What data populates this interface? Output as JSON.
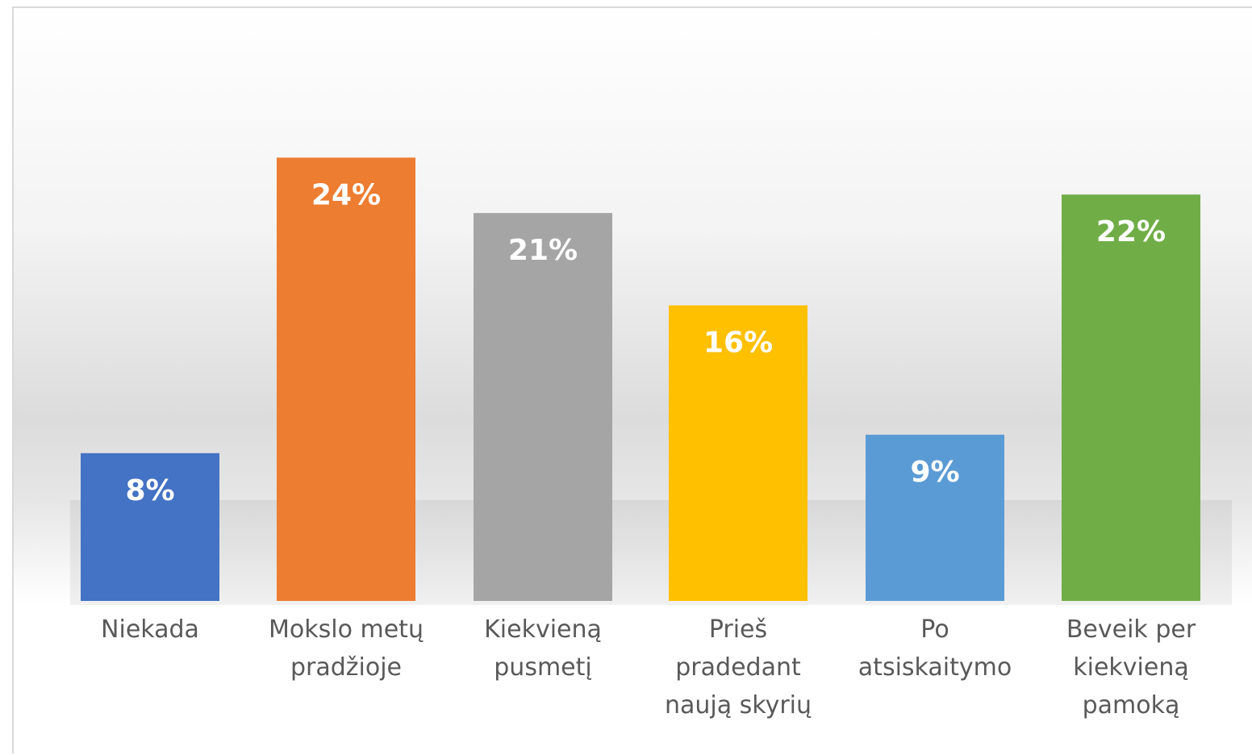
{
  "chart_data": {
    "type": "bar",
    "categories": [
      "Niekada",
      "Mokslo metų pradžioje",
      "Kiekvieną pusmetį",
      "Prieš pradedant naują skyrių",
      "Po atsiskaitymo",
      "Beveik per kiekvieną pamoką"
    ],
    "values": [
      8,
      24,
      21,
      16,
      9,
      22
    ],
    "value_labels": [
      "8%",
      "24%",
      "21%",
      "16%",
      "9%",
      "22%"
    ],
    "colors": [
      "#4472c4",
      "#ed7d31",
      "#a5a5a5",
      "#ffc000",
      "#5b9bd5",
      "#70ad47"
    ]
  }
}
